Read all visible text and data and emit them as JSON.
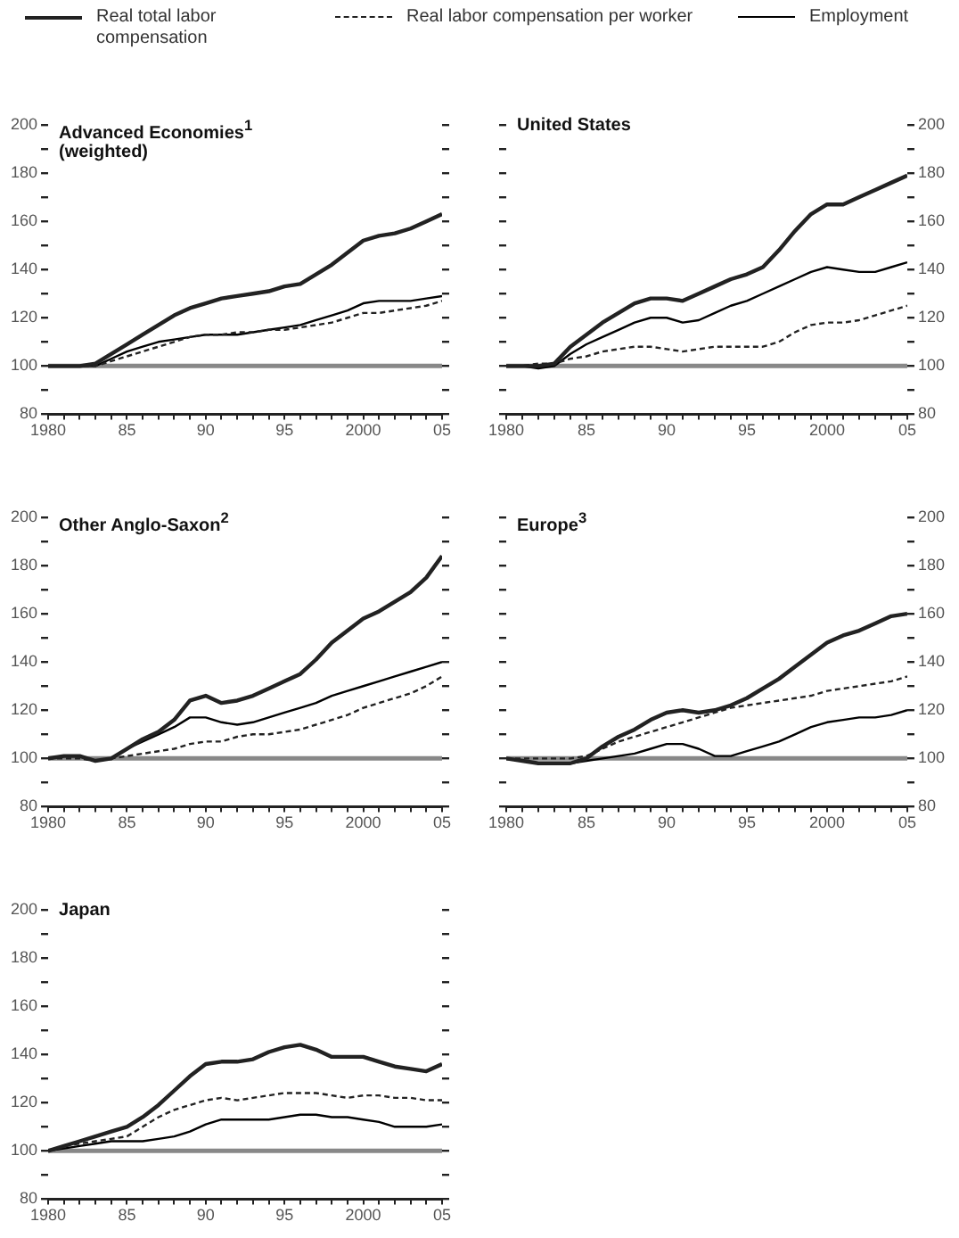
{
  "chart_data": [
    {
      "type": "line",
      "title": "Advanced Economies$^{1}$ (weighted)",
      "legend": "top",
      "x": [
        1980,
        1981,
        1982,
        1983,
        1984,
        1985,
        1986,
        1987,
        1988,
        1989,
        1990,
        1991,
        1992,
        1993,
        1994,
        1995,
        1996,
        1997,
        1998,
        1999,
        2000,
        2001,
        2002,
        2003,
        2004,
        2005
      ],
      "xlim": [
        1980,
        2005
      ],
      "xticks": [
        {
          "value": 1980,
          "label": "1980"
        },
        {
          "value": 1981,
          "label": null
        },
        {
          "value": 1982,
          "label": null
        },
        {
          "value": 1983,
          "label": null
        },
        {
          "value": 1984,
          "label": null
        },
        {
          "value": 1985,
          "label": "85"
        },
        {
          "value": 1986,
          "label": null
        },
        {
          "value": 1987,
          "label": null
        },
        {
          "value": 1988,
          "label": null
        },
        {
          "value": 1989,
          "label": null
        },
        {
          "value": 1990,
          "label": "90"
        },
        {
          "value": 1991,
          "label": null
        },
        {
          "value": 1992,
          "label": null
        },
        {
          "value": 1993,
          "label": null
        },
        {
          "value": 1994,
          "label": null
        },
        {
          "value": 1995,
          "label": "95"
        },
        {
          "value": 1996,
          "label": null
        },
        {
          "value": 1997,
          "label": null
        },
        {
          "value": 1998,
          "label": null
        },
        {
          "value": 1999,
          "label": null
        },
        {
          "value": 2000,
          "label": "2000"
        },
        {
          "value": 2001,
          "label": null
        },
        {
          "value": 2002,
          "label": null
        },
        {
          "value": 2003,
          "label": null
        },
        {
          "value": 2004,
          "label": null
        },
        {
          "value": 2005,
          "label": "05"
        }
      ],
      "ylim": [
        80,
        200
      ],
      "yticks": [
        80,
        {
          "value": 90,
          "label": null
        },
        100,
        {
          "value": 110,
          "label": null
        },
        120,
        {
          "value": 130,
          "label": null
        },
        140,
        {
          "value": 150,
          "label": null
        },
        160,
        {
          "value": 170,
          "label": null
        },
        180,
        {
          "value": 190,
          "label": null
        },
        200
      ],
      "ref_lines": [
        {
          "axis": "y",
          "value": 100,
          "color": "#888888"
        }
      ],
      "series": [
        {
          "name": "Real total labor compensation",
          "color": "#222222",
          "line_style": "solid",
          "values": [
            100,
            100,
            100,
            101,
            105,
            109,
            113,
            117,
            121,
            124,
            126,
            128,
            129,
            130,
            131,
            133,
            134,
            138,
            142,
            147,
            152,
            154,
            155,
            157,
            160,
            163
          ]
        },
        {
          "name": "Real labor compensation per worker",
          "color": "#222222",
          "line_style": "dashed",
          "values": [
            100,
            100,
            100,
            100,
            102,
            104,
            106,
            108,
            110,
            112,
            113,
            113,
            114,
            114,
            115,
            115,
            116,
            117,
            118,
            120,
            122,
            122,
            123,
            124,
            125,
            127
          ]
        },
        {
          "name": "Employment",
          "color": "#000000",
          "line_style": "solid",
          "values": [
            100,
            100,
            100,
            100,
            103,
            106,
            108,
            110,
            111,
            112,
            113,
            113,
            113,
            114,
            115,
            116,
            117,
            119,
            121,
            123,
            126,
            127,
            127,
            127,
            128,
            129
          ]
        }
      ]
    },
    {
      "type": "line",
      "title": "United States",
      "x": [
        1980,
        1981,
        1982,
        1983,
        1984,
        1985,
        1986,
        1987,
        1988,
        1989,
        1990,
        1991,
        1992,
        1993,
        1994,
        1995,
        1996,
        1997,
        1998,
        1999,
        2000,
        2001,
        2002,
        2003,
        2004,
        2005
      ],
      "xlim": [
        1980,
        2005
      ],
      "xticks": [
        {
          "value": 1980,
          "label": "1980"
        },
        {
          "value": 1981,
          "label": null
        },
        {
          "value": 1982,
          "label": null
        },
        {
          "value": 1983,
          "label": null
        },
        {
          "value": 1984,
          "label": null
        },
        {
          "value": 1985,
          "label": "85"
        },
        {
          "value": 1986,
          "label": null
        },
        {
          "value": 1987,
          "label": null
        },
        {
          "value": 1988,
          "label": null
        },
        {
          "value": 1989,
          "label": null
        },
        {
          "value": 1990,
          "label": "90"
        },
        {
          "value": 1991,
          "label": null
        },
        {
          "value": 1992,
          "label": null
        },
        {
          "value": 1993,
          "label": null
        },
        {
          "value": 1994,
          "label": null
        },
        {
          "value": 1995,
          "label": "95"
        },
        {
          "value": 1996,
          "label": null
        },
        {
          "value": 1997,
          "label": null
        },
        {
          "value": 1998,
          "label": null
        },
        {
          "value": 1999,
          "label": null
        },
        {
          "value": 2000,
          "label": "2000"
        },
        {
          "value": 2001,
          "label": null
        },
        {
          "value": 2002,
          "label": null
        },
        {
          "value": 2003,
          "label": null
        },
        {
          "value": 2004,
          "label": null
        },
        {
          "value": 2005,
          "label": "05"
        }
      ],
      "ylim": [
        80,
        200
      ],
      "yticks": [
        80,
        {
          "value": 90,
          "label": null
        },
        100,
        {
          "value": 110,
          "label": null
        },
        120,
        {
          "value": 130,
          "label": null
        },
        140,
        {
          "value": 150,
          "label": null
        },
        160,
        {
          "value": 170,
          "label": null
        },
        180,
        {
          "value": 190,
          "label": null
        },
        200
      ],
      "ref_lines": [
        {
          "axis": "y",
          "value": 100,
          "color": "#888888"
        }
      ],
      "series": [
        {
          "color": "#222222",
          "line_style": "solid",
          "values": [
            100,
            100,
            100,
            101,
            108,
            113,
            118,
            122,
            126,
            128,
            128,
            127,
            130,
            133,
            136,
            138,
            141,
            148,
            156,
            163,
            167,
            167,
            170,
            173,
            176,
            179
          ]
        },
        {
          "color": "#222222",
          "line_style": "dashed",
          "values": [
            100,
            100,
            101,
            101,
            103,
            104,
            106,
            107,
            108,
            108,
            107,
            106,
            107,
            108,
            108,
            108,
            108,
            110,
            114,
            117,
            118,
            118,
            119,
            121,
            123,
            125
          ]
        },
        {
          "color": "#000000",
          "line_style": "solid",
          "values": [
            100,
            100,
            99,
            100,
            105,
            109,
            112,
            115,
            118,
            120,
            120,
            118,
            119,
            122,
            125,
            127,
            130,
            133,
            136,
            139,
            141,
            140,
            139,
            139,
            141,
            143
          ]
        }
      ]
    },
    {
      "type": "line",
      "title": "Other Anglo-Saxon$^{2}$",
      "x": [
        1980,
        1981,
        1982,
        1983,
        1984,
        1985,
        1986,
        1987,
        1988,
        1989,
        1990,
        1991,
        1992,
        1993,
        1994,
        1995,
        1996,
        1997,
        1998,
        1999,
        2000,
        2001,
        2002,
        2003,
        2004,
        2005
      ],
      "xlim": [
        1980,
        2005
      ],
      "xticks": [
        {
          "value": 1980,
          "label": "1980"
        },
        {
          "value": 1981,
          "label": null
        },
        {
          "value": 1982,
          "label": null
        },
        {
          "value": 1983,
          "label": null
        },
        {
          "value": 1984,
          "label": null
        },
        {
          "value": 1985,
          "label": "85"
        },
        {
          "value": 1986,
          "label": null
        },
        {
          "value": 1987,
          "label": null
        },
        {
          "value": 1988,
          "label": null
        },
        {
          "value": 1989,
          "label": null
        },
        {
          "value": 1990,
          "label": "90"
        },
        {
          "value": 1991,
          "label": null
        },
        {
          "value": 1992,
          "label": null
        },
        {
          "value": 1993,
          "label": null
        },
        {
          "value": 1994,
          "label": null
        },
        {
          "value": 1995,
          "label": "95"
        },
        {
          "value": 1996,
          "label": null
        },
        {
          "value": 1997,
          "label": null
        },
        {
          "value": 1998,
          "label": null
        },
        {
          "value": 1999,
          "label": null
        },
        {
          "value": 2000,
          "label": "2000"
        },
        {
          "value": 2001,
          "label": null
        },
        {
          "value": 2002,
          "label": null
        },
        {
          "value": 2003,
          "label": null
        },
        {
          "value": 2004,
          "label": null
        },
        {
          "value": 2005,
          "label": "05"
        }
      ],
      "ylim": [
        80,
        200
      ],
      "yticks": [
        80,
        {
          "value": 90,
          "label": null
        },
        100,
        {
          "value": 110,
          "label": null
        },
        120,
        {
          "value": 130,
          "label": null
        },
        140,
        {
          "value": 150,
          "label": null
        },
        160,
        {
          "value": 170,
          "label": null
        },
        180,
        {
          "value": 190,
          "label": null
        },
        200
      ],
      "ref_lines": [
        {
          "axis": "y",
          "value": 100,
          "color": "#888888"
        }
      ],
      "series": [
        {
          "color": "#222222",
          "line_style": "solid",
          "values": [
            100,
            101,
            101,
            99,
            100,
            104,
            108,
            111,
            116,
            124,
            126,
            123,
            124,
            126,
            129,
            132,
            135,
            141,
            148,
            153,
            158,
            161,
            165,
            169,
            175,
            184
          ]
        },
        {
          "color": "#222222",
          "line_style": "dashed",
          "values": [
            100,
            100,
            100,
            99,
            100,
            101,
            102,
            103,
            104,
            106,
            107,
            107,
            109,
            110,
            110,
            111,
            112,
            114,
            116,
            118,
            121,
            123,
            125,
            127,
            130,
            134
          ]
        },
        {
          "color": "#000000",
          "line_style": "solid",
          "values": [
            100,
            101,
            101,
            99,
            100,
            104,
            107,
            110,
            113,
            117,
            117,
            115,
            114,
            115,
            117,
            119,
            121,
            123,
            126,
            128,
            130,
            132,
            134,
            136,
            138,
            140
          ]
        }
      ]
    },
    {
      "type": "line",
      "title": "Europe$^{3}$",
      "x": [
        1980,
        1981,
        1982,
        1983,
        1984,
        1985,
        1986,
        1987,
        1988,
        1989,
        1990,
        1991,
        1992,
        1993,
        1994,
        1995,
        1996,
        1997,
        1998,
        1999,
        2000,
        2001,
        2002,
        2003,
        2004,
        2005
      ],
      "xlim": [
        1980,
        2005
      ],
      "xticks": [
        {
          "value": 1980,
          "label": "1980"
        },
        {
          "value": 1981,
          "label": null
        },
        {
          "value": 1982,
          "label": null
        },
        {
          "value": 1983,
          "label": null
        },
        {
          "value": 1984,
          "label": null
        },
        {
          "value": 1985,
          "label": "85"
        },
        {
          "value": 1986,
          "label": null
        },
        {
          "value": 1987,
          "label": null
        },
        {
          "value": 1988,
          "label": null
        },
        {
          "value": 1989,
          "label": null
        },
        {
          "value": 1990,
          "label": "90"
        },
        {
          "value": 1991,
          "label": null
        },
        {
          "value": 1992,
          "label": null
        },
        {
          "value": 1993,
          "label": null
        },
        {
          "value": 1994,
          "label": null
        },
        {
          "value": 1995,
          "label": "95"
        },
        {
          "value": 1996,
          "label": null
        },
        {
          "value": 1997,
          "label": null
        },
        {
          "value": 1998,
          "label": null
        },
        {
          "value": 1999,
          "label": null
        },
        {
          "value": 2000,
          "label": "2000"
        },
        {
          "value": 2001,
          "label": null
        },
        {
          "value": 2002,
          "label": null
        },
        {
          "value": 2003,
          "label": null
        },
        {
          "value": 2004,
          "label": null
        },
        {
          "value": 2005,
          "label": "05"
        }
      ],
      "ylim": [
        80,
        200
      ],
      "yticks": [
        80,
        {
          "value": 90,
          "label": null
        },
        100,
        {
          "value": 110,
          "label": null
        },
        120,
        {
          "value": 130,
          "label": null
        },
        140,
        {
          "value": 150,
          "label": null
        },
        160,
        {
          "value": 170,
          "label": null
        },
        180,
        {
          "value": 190,
          "label": null
        },
        200
      ],
      "ref_lines": [
        {
          "axis": "y",
          "value": 100,
          "color": "#888888"
        }
      ],
      "series": [
        {
          "color": "#222222",
          "line_style": "solid",
          "values": [
            100,
            99,
            98,
            98,
            98,
            100,
            105,
            109,
            112,
            116,
            119,
            120,
            119,
            120,
            122,
            125,
            129,
            133,
            138,
            143,
            148,
            151,
            153,
            156,
            159,
            160
          ]
        },
        {
          "color": "#222222",
          "line_style": "dashed",
          "values": [
            100,
            100,
            100,
            100,
            100,
            101,
            104,
            107,
            109,
            111,
            113,
            115,
            117,
            119,
            121,
            122,
            123,
            124,
            125,
            126,
            128,
            129,
            130,
            131,
            132,
            134
          ]
        },
        {
          "color": "#000000",
          "line_style": "solid",
          "values": [
            100,
            99,
            98,
            98,
            98,
            99,
            100,
            101,
            102,
            104,
            106,
            106,
            104,
            101,
            101,
            103,
            105,
            107,
            110,
            113,
            115,
            116,
            117,
            117,
            118,
            120
          ]
        }
      ]
    },
    {
      "type": "line",
      "title": "Japan",
      "x": [
        1980,
        1981,
        1982,
        1983,
        1984,
        1985,
        1986,
        1987,
        1988,
        1989,
        1990,
        1991,
        1992,
        1993,
        1994,
        1995,
        1996,
        1997,
        1998,
        1999,
        2000,
        2001,
        2002,
        2003,
        2004,
        2005
      ],
      "xlim": [
        1980,
        2005
      ],
      "xticks": [
        {
          "value": 1980,
          "label": "1980"
        },
        {
          "value": 1981,
          "label": null
        },
        {
          "value": 1982,
          "label": null
        },
        {
          "value": 1983,
          "label": null
        },
        {
          "value": 1984,
          "label": null
        },
        {
          "value": 1985,
          "label": "85"
        },
        {
          "value": 1986,
          "label": null
        },
        {
          "value": 1987,
          "label": null
        },
        {
          "value": 1988,
          "label": null
        },
        {
          "value": 1989,
          "label": null
        },
        {
          "value": 1990,
          "label": "90"
        },
        {
          "value": 1991,
          "label": null
        },
        {
          "value": 1992,
          "label": null
        },
        {
          "value": 1993,
          "label": null
        },
        {
          "value": 1994,
          "label": null
        },
        {
          "value": 1995,
          "label": "95"
        },
        {
          "value": 1996,
          "label": null
        },
        {
          "value": 1997,
          "label": null
        },
        {
          "value": 1998,
          "label": null
        },
        {
          "value": 1999,
          "label": null
        },
        {
          "value": 2000,
          "label": "2000"
        },
        {
          "value": 2001,
          "label": null
        },
        {
          "value": 2002,
          "label": null
        },
        {
          "value": 2003,
          "label": null
        },
        {
          "value": 2004,
          "label": null
        },
        {
          "value": 2005,
          "label": "05"
        }
      ],
      "ylim": [
        80,
        200
      ],
      "yticks": [
        80,
        {
          "value": 90,
          "label": null
        },
        100,
        {
          "value": 110,
          "label": null
        },
        120,
        {
          "value": 130,
          "label": null
        },
        140,
        {
          "value": 150,
          "label": null
        },
        160,
        {
          "value": 170,
          "label": null
        },
        180,
        {
          "value": 190,
          "label": null
        },
        200
      ],
      "ref_lines": [
        {
          "axis": "y",
          "value": 100,
          "color": "#888888"
        }
      ],
      "series": [
        {
          "color": "#222222",
          "line_style": "solid",
          "values": [
            100,
            102,
            104,
            106,
            108,
            110,
            114,
            119,
            125,
            131,
            136,
            137,
            137,
            138,
            141,
            143,
            144,
            142,
            139,
            139,
            139,
            137,
            135,
            134,
            133,
            136
          ]
        },
        {
          "color": "#222222",
          "line_style": "dashed",
          "values": [
            100,
            102,
            103,
            104,
            105,
            106,
            110,
            114,
            117,
            119,
            121,
            122,
            121,
            122,
            123,
            124,
            124,
            124,
            123,
            122,
            123,
            123,
            122,
            122,
            121,
            121
          ]
        },
        {
          "color": "#000000",
          "line_style": "solid",
          "values": [
            100,
            101,
            102,
            103,
            104,
            104,
            104,
            105,
            106,
            108,
            111,
            113,
            113,
            113,
            113,
            114,
            115,
            115,
            114,
            114,
            113,
            112,
            110,
            110,
            110,
            111
          ]
        }
      ]
    }
  ]
}
